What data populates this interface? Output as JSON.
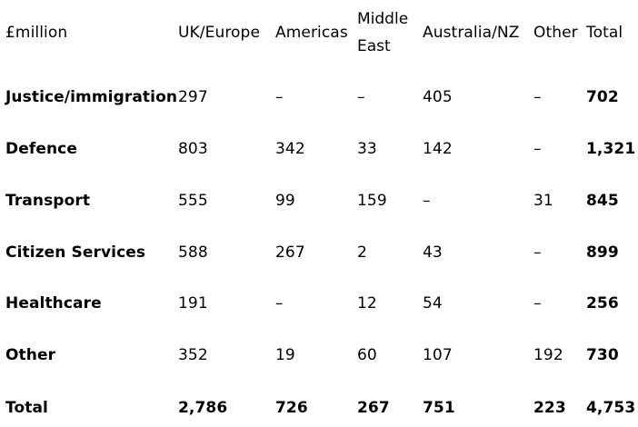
{
  "chart_data": {
    "type": "table",
    "unit_label": "£million",
    "columns": [
      "UK/Europe",
      "Americas",
      "Middle East",
      "Australia/NZ",
      "Other",
      "Total"
    ],
    "rows": [
      {
        "label": "Justice/immigration",
        "values": [
          "297",
          "–",
          "–",
          "405",
          "–",
          "702"
        ]
      },
      {
        "label": "Defence",
        "values": [
          "803",
          "342",
          "33",
          "142",
          "–",
          "1,321"
        ]
      },
      {
        "label": "Transport",
        "values": [
          "555",
          "99",
          "159",
          "–",
          "31",
          "845"
        ]
      },
      {
        "label": "Citizen Services",
        "values": [
          "588",
          "267",
          "2",
          "43",
          "–",
          "899"
        ]
      },
      {
        "label": "Healthcare",
        "values": [
          "191",
          "–",
          "12",
          "54",
          "–",
          "256"
        ]
      },
      {
        "label": "Other",
        "values": [
          "352",
          "19",
          "60",
          "107",
          "192",
          "730"
        ]
      }
    ],
    "total_row": {
      "label": "Total",
      "values": [
        "2,786",
        "726",
        "267",
        "751",
        "223",
        "4,753"
      ]
    }
  }
}
